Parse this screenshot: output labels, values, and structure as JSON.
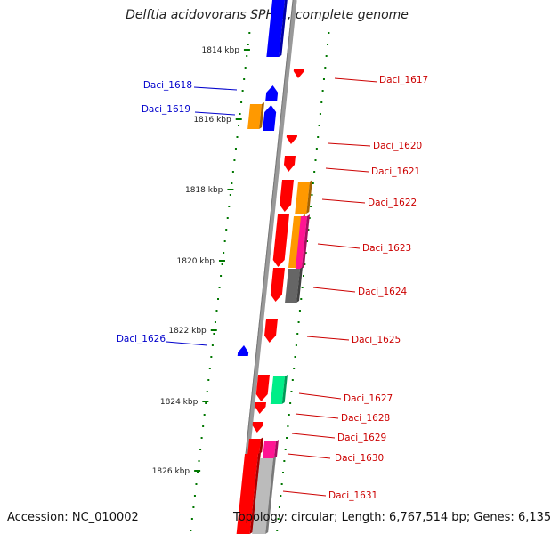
{
  "title": "Delftia acidovorans SPH-1, complete genome",
  "footer": {
    "accession_label": "Accession:",
    "accession": "NC_010002",
    "topology_label": "Topology:",
    "topology": "circular;",
    "length_label": "Length:",
    "length": "6,767,514 bp;",
    "genes_label": "Genes:",
    "genes": "6,135"
  },
  "scale_ticks": [
    {
      "label": "1814 kbp"
    },
    {
      "label": "1816 kbp"
    },
    {
      "label": "1818 kbp"
    },
    {
      "label": "1820 kbp"
    },
    {
      "label": "1822 kbp"
    },
    {
      "label": "1824 kbp"
    },
    {
      "label": "1826 kbp"
    }
  ],
  "colors": {
    "forward_label": "#0000cc",
    "reverse_label": "#cc0000",
    "axis": "#888888",
    "tick": "#007700",
    "red": "#ff0000",
    "blue": "#0000ff",
    "orange": "#ff9900",
    "magenta": "#ff1493",
    "green": "#00ee88",
    "gray": "#666666",
    "lightgray": "#bbbbbb"
  },
  "genes": [
    {
      "name": "Daci_1617",
      "strand": "reverse"
    },
    {
      "name": "Daci_1618",
      "strand": "forward"
    },
    {
      "name": "Daci_1619",
      "strand": "forward"
    },
    {
      "name": "Daci_1620",
      "strand": "reverse"
    },
    {
      "name": "Daci_1621",
      "strand": "reverse"
    },
    {
      "name": "Daci_1622",
      "strand": "reverse"
    },
    {
      "name": "Daci_1623",
      "strand": "reverse"
    },
    {
      "name": "Daci_1624",
      "strand": "reverse"
    },
    {
      "name": "Daci_1625",
      "strand": "reverse"
    },
    {
      "name": "Daci_1626",
      "strand": "forward"
    },
    {
      "name": "Daci_1627",
      "strand": "reverse"
    },
    {
      "name": "Daci_1628",
      "strand": "reverse"
    },
    {
      "name": "Daci_1629",
      "strand": "reverse"
    },
    {
      "name": "Daci_1630",
      "strand": "reverse"
    },
    {
      "name": "Daci_1631",
      "strand": "reverse"
    }
  ]
}
